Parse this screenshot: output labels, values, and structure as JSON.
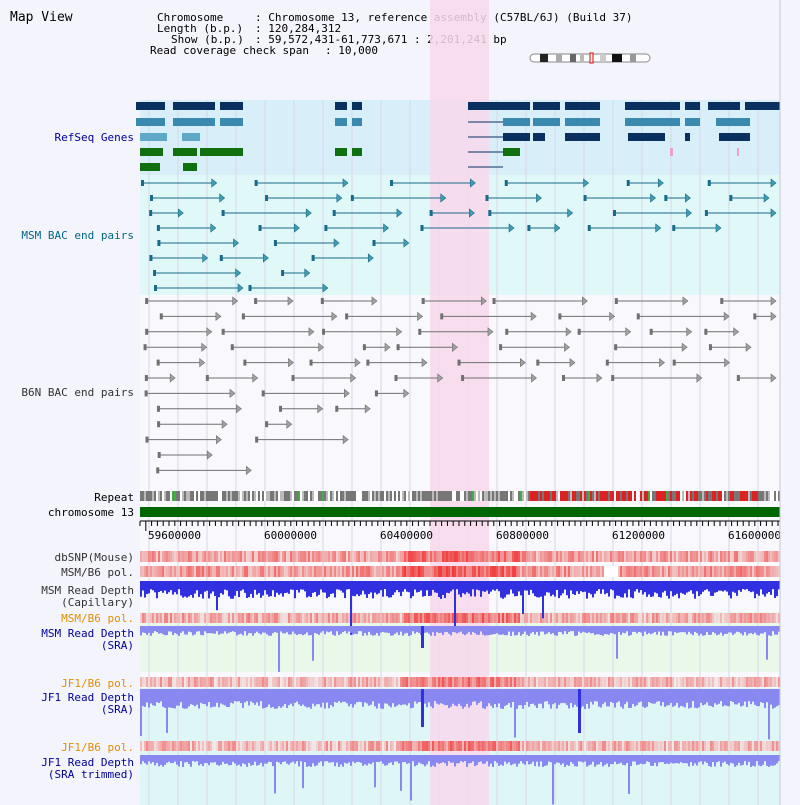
{
  "header": {
    "title": "Map View",
    "chromosome_key": "Chromosome",
    "chromosome_val": ": Chromosome 13, reference assembly (C57BL/6J) (Build 37)",
    "length_key": "Length (b.p.)",
    "length_val": ": 120,284,312",
    "show_key": "Show (b.p.)",
    "show_val": ": 59,572,431-61,773,671 : 2,201,241 bp",
    "coverage_key": "Read coverage check span",
    "coverage_val": ": 10,000"
  },
  "tracks": {
    "refseq": "RefSeq Genes",
    "msm_bac": "MSM BAC end pairs",
    "b6n_bac": "B6N BAC end pairs",
    "repeat": "Repeat",
    "chromosome": "chromosome 13",
    "dbsnp": "dbSNP(Mouse)",
    "msm_b6_pol_1": "MSM/B6 pol.",
    "msm_read_depth_cap_1": "MSM Read Depth",
    "msm_read_depth_cap_2": "(Capillary)",
    "msm_b6_pol_2": "MSM/B6 pol.",
    "msm_read_depth_sra_1": "MSM Read Depth",
    "msm_read_depth_sra_2": "(SRA)",
    "jf1_b6_pol_1": "JF1/B6 pol.",
    "jf1_read_depth_sra_1": "JF1 Read Depth",
    "jf1_read_depth_sra_2": "(SRA)",
    "jf1_b6_pol_2": "JF1/B6 pol.",
    "jf1_read_depth_trim_1": "JF1 Read Depth",
    "jf1_read_depth_trim_2": "(SRA trimmed)"
  },
  "axis": {
    "ticks": [
      "59600000",
      "60000000",
      "60400000",
      "60800000",
      "61200000",
      "61600000"
    ]
  },
  "colors": {
    "highlight": "#f8d8ec",
    "refseq_bg": "#d8eef8",
    "msm_bg": "#e0f8f8",
    "gene_dark": "#0a3060",
    "gene_mid": "#3a8ab0",
    "gene_light": "#60a8c8",
    "gene_green": "#107010",
    "msm_line": "#1a6a8a",
    "b6n_line": "#707070",
    "snp_red": "#e04040",
    "depth_blue": "#3030e0",
    "depth_lavender": "#8888f0",
    "chromosome_bar": "#006600",
    "label_navy": "#000099",
    "label_orange": "#e09000",
    "label_teal": "#006688"
  }
}
